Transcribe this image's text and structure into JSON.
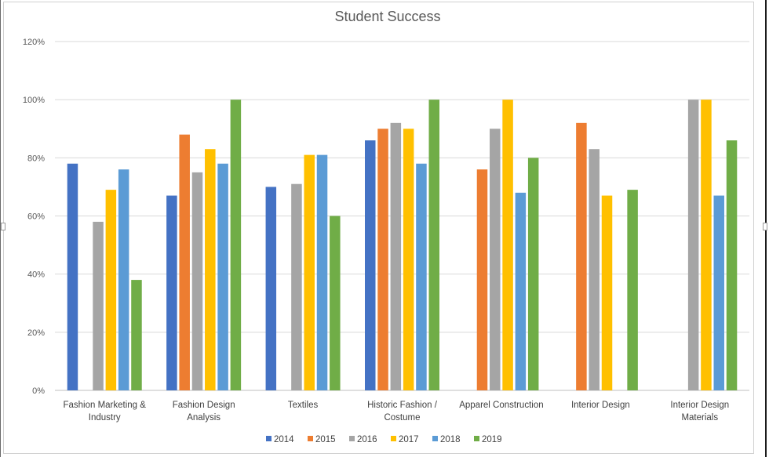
{
  "chart_data": {
    "type": "bar",
    "title": "Student Success",
    "xlabel": "",
    "ylabel": "",
    "ylim": [
      0,
      120
    ],
    "yticks": [
      "0%",
      "20%",
      "40%",
      "60%",
      "80%",
      "100%",
      "120%"
    ],
    "grid": true,
    "legend_position": "bottom",
    "categories": [
      [
        "Fashion Marketing &",
        "Industry"
      ],
      [
        "Fashion Design",
        "Analysis"
      ],
      [
        "Textiles"
      ],
      [
        "Historic Fashion /",
        "Costume"
      ],
      [
        "Apparel Construction"
      ],
      [
        "Interior Design"
      ],
      [
        "Interior Design",
        "Materials"
      ]
    ],
    "series": [
      {
        "name": "2014",
        "color": "#4472c4",
        "values": [
          78,
          67,
          70,
          86,
          null,
          null,
          null
        ]
      },
      {
        "name": "2015",
        "color": "#ed7d31",
        "values": [
          null,
          88,
          null,
          90,
          76,
          92,
          null
        ]
      },
      {
        "name": "2016",
        "color": "#a5a5a5",
        "values": [
          58,
          75,
          71,
          92,
          90,
          83,
          100
        ]
      },
      {
        "name": "2017",
        "color": "#ffc000",
        "values": [
          69,
          83,
          81,
          90,
          100,
          67,
          100
        ]
      },
      {
        "name": "2018",
        "color": "#5b9bd5",
        "values": [
          76,
          78,
          81,
          78,
          68,
          null,
          67
        ]
      },
      {
        "name": "2019",
        "color": "#70ad47",
        "values": [
          38,
          100,
          60,
          100,
          80,
          69,
          86
        ]
      }
    ]
  }
}
